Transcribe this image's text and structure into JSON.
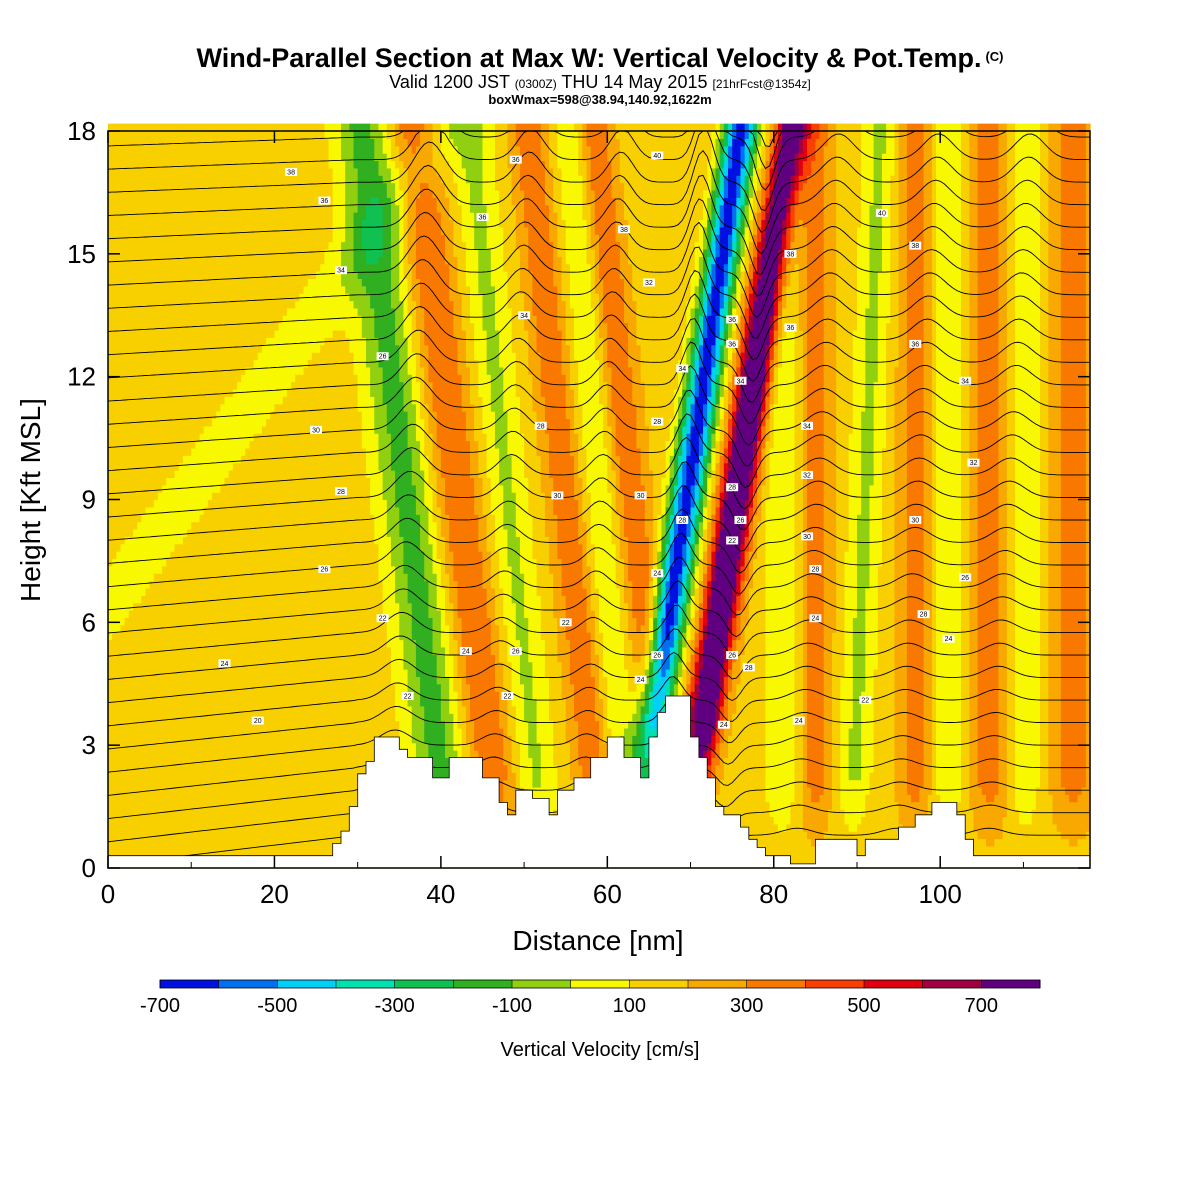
{
  "header": {
    "title": "Wind-Parallel Section at Max W: Vertical Velocity & Pot.Temp.",
    "title_mark": "(C)",
    "valid_prefix": "Valid 1200 JST",
    "valid_utc": "(0300Z)",
    "valid_date": "THU 14 May 2015",
    "forecast": "[21hrFcst@1354z]",
    "box_info": "boxWmax=598@38.94,140.92,1622m"
  },
  "chart_data": {
    "type": "heatmap",
    "xlabel": "Distance [nm]",
    "ylabel": "Height [Kft MSL]",
    "xlim": [
      0,
      118
    ],
    "ylim": [
      0,
      18
    ],
    "x_ticks": [
      0,
      20,
      40,
      60,
      80,
      100
    ],
    "y_ticks": [
      0,
      3,
      6,
      9,
      12,
      15,
      18
    ],
    "colorbar": {
      "title": "Vertical Velocity [cm/s]",
      "labels": [
        "-700",
        "-500",
        "-300",
        "-100",
        "100",
        "300",
        "500",
        "700"
      ],
      "colors": [
        "#0010e0",
        "#0070f0",
        "#00d0f8",
        "#00e0b0",
        "#10c050",
        "#30b020",
        "#90d010",
        "#f8f800",
        "#f8d000",
        "#f8a800",
        "#f87800",
        "#f84000",
        "#e00010",
        "#a00040",
        "#600080"
      ]
    },
    "terrain_kft": [
      [
        0,
        0.3
      ],
      [
        27,
        0.3
      ],
      [
        27,
        0.6
      ],
      [
        28,
        0.6
      ],
      [
        28,
        0.9
      ],
      [
        29,
        0.9
      ],
      [
        29,
        1.5
      ],
      [
        30,
        1.5
      ],
      [
        30,
        2.3
      ],
      [
        31,
        2.3
      ],
      [
        31,
        2.6
      ],
      [
        32,
        2.6
      ],
      [
        32,
        3.2
      ],
      [
        35,
        3.2
      ],
      [
        35,
        2.9
      ],
      [
        36,
        2.9
      ],
      [
        36,
        2.7
      ],
      [
        39,
        2.7
      ],
      [
        39,
        2.2
      ],
      [
        41,
        2.2
      ],
      [
        41,
        2.7
      ],
      [
        45,
        2.7
      ],
      [
        45,
        2.2
      ],
      [
        47,
        2.2
      ],
      [
        47,
        1.6
      ],
      [
        48,
        1.6
      ],
      [
        48,
        1.3
      ],
      [
        49,
        1.3
      ],
      [
        49,
        1.9
      ],
      [
        51,
        1.9
      ],
      [
        51,
        1.7
      ],
      [
        53,
        1.7
      ],
      [
        53,
        1.3
      ],
      [
        54,
        1.3
      ],
      [
        54,
        1.9
      ],
      [
        56,
        1.9
      ],
      [
        56,
        2.2
      ],
      [
        58,
        2.2
      ],
      [
        58,
        2.7
      ],
      [
        60,
        2.7
      ],
      [
        60,
        3.2
      ],
      [
        62,
        3.2
      ],
      [
        62,
        2.7
      ],
      [
        64,
        2.7
      ],
      [
        64,
        2.2
      ],
      [
        65,
        2.2
      ],
      [
        65,
        3.2
      ],
      [
        66,
        3.2
      ],
      [
        66,
        3.8
      ],
      [
        67,
        3.8
      ],
      [
        67,
        4.2
      ],
      [
        70,
        4.2
      ],
      [
        70,
        3.2
      ],
      [
        71,
        3.2
      ],
      [
        71,
        2.7
      ],
      [
        72,
        2.7
      ],
      [
        72,
        2.2
      ],
      [
        73,
        2.2
      ],
      [
        73,
        1.5
      ],
      [
        74,
        1.5
      ],
      [
        74,
        1.3
      ],
      [
        76,
        1.3
      ],
      [
        76,
        1.0
      ],
      [
        77,
        1.0
      ],
      [
        77,
        0.7
      ],
      [
        78,
        0.7
      ],
      [
        78,
        0.5
      ],
      [
        79,
        0.5
      ],
      [
        79,
        0.3
      ],
      [
        82,
        0.3
      ],
      [
        82,
        0.1
      ],
      [
        85,
        0.1
      ],
      [
        85,
        0.7
      ],
      [
        90,
        0.7
      ],
      [
        90,
        0.3
      ],
      [
        91,
        0.3
      ],
      [
        91,
        0.7
      ],
      [
        95,
        0.7
      ],
      [
        95,
        1.0
      ],
      [
        97,
        1.0
      ],
      [
        97,
        1.3
      ],
      [
        99,
        1.3
      ],
      [
        99,
        1.6
      ],
      [
        102,
        1.6
      ],
      [
        102,
        1.3
      ],
      [
        103,
        1.3
      ],
      [
        103,
        0.7
      ],
      [
        104,
        0.7
      ],
      [
        104,
        0.3
      ],
      [
        118,
        0.3
      ]
    ],
    "isentrope_labels": [
      {
        "x": 22,
        "y": 17.0,
        "text": "38"
      },
      {
        "x": 26,
        "y": 16.3,
        "text": "36"
      },
      {
        "x": 28,
        "y": 14.6,
        "text": "34"
      },
      {
        "x": 25,
        "y": 10.7,
        "text": "30"
      },
      {
        "x": 28,
        "y": 9.2,
        "text": "28"
      },
      {
        "x": 26,
        "y": 7.3,
        "text": "26"
      },
      {
        "x": 14,
        "y": 5.0,
        "text": "24"
      },
      {
        "x": 18,
        "y": 3.6,
        "text": "20"
      },
      {
        "x": 33,
        "y": 6.1,
        "text": "22"
      },
      {
        "x": 36,
        "y": 4.2,
        "text": "22"
      },
      {
        "x": 33,
        "y": 12.5,
        "text": "26"
      },
      {
        "x": 49,
        "y": 17.3,
        "text": "36"
      },
      {
        "x": 45,
        "y": 15.9,
        "text": "36"
      },
      {
        "x": 50,
        "y": 13.5,
        "text": "34"
      },
      {
        "x": 52,
        "y": 10.8,
        "text": "28"
      },
      {
        "x": 54,
        "y": 9.1,
        "text": "30"
      },
      {
        "x": 55,
        "y": 6.0,
        "text": "22"
      },
      {
        "x": 43,
        "y": 5.3,
        "text": "24"
      },
      {
        "x": 49,
        "y": 5.3,
        "text": "26"
      },
      {
        "x": 48,
        "y": 4.2,
        "text": "22"
      },
      {
        "x": 62,
        "y": 15.6,
        "text": "38"
      },
      {
        "x": 65,
        "y": 14.3,
        "text": "32"
      },
      {
        "x": 66,
        "y": 10.9,
        "text": "28"
      },
      {
        "x": 64,
        "y": 9.1,
        "text": "30"
      },
      {
        "x": 66,
        "y": 7.2,
        "text": "24"
      },
      {
        "x": 66,
        "y": 5.2,
        "text": "26"
      },
      {
        "x": 64,
        "y": 4.6,
        "text": "24"
      },
      {
        "x": 69,
        "y": 12.2,
        "text": "34"
      },
      {
        "x": 69,
        "y": 8.5,
        "text": "28"
      },
      {
        "x": 66,
        "y": 17.4,
        "text": "40"
      },
      {
        "x": 75,
        "y": 13.4,
        "text": "36"
      },
      {
        "x": 75,
        "y": 12.8,
        "text": "36"
      },
      {
        "x": 76,
        "y": 11.9,
        "text": "34"
      },
      {
        "x": 75,
        "y": 9.3,
        "text": "28"
      },
      {
        "x": 76,
        "y": 8.5,
        "text": "26"
      },
      {
        "x": 75,
        "y": 8.0,
        "text": "22"
      },
      {
        "x": 75,
        "y": 5.2,
        "text": "26"
      },
      {
        "x": 77,
        "y": 4.9,
        "text": "28"
      },
      {
        "x": 74,
        "y": 3.5,
        "text": "24"
      },
      {
        "x": 82,
        "y": 15.0,
        "text": "38"
      },
      {
        "x": 82,
        "y": 13.2,
        "text": "36"
      },
      {
        "x": 84,
        "y": 10.8,
        "text": "34"
      },
      {
        "x": 84,
        "y": 9.6,
        "text": "32"
      },
      {
        "x": 84,
        "y": 8.1,
        "text": "30"
      },
      {
        "x": 85,
        "y": 7.3,
        "text": "28"
      },
      {
        "x": 85,
        "y": 6.1,
        "text": "24"
      },
      {
        "x": 83,
        "y": 3.6,
        "text": "24"
      },
      {
        "x": 93,
        "y": 16.0,
        "text": "40"
      },
      {
        "x": 97,
        "y": 15.2,
        "text": "38"
      },
      {
        "x": 97,
        "y": 12.8,
        "text": "36"
      },
      {
        "x": 103,
        "y": 11.9,
        "text": "34"
      },
      {
        "x": 104,
        "y": 9.9,
        "text": "32"
      },
      {
        "x": 97,
        "y": 8.5,
        "text": "30"
      },
      {
        "x": 103,
        "y": 7.1,
        "text": "26"
      },
      {
        "x": 98,
        "y": 6.2,
        "text": "28"
      },
      {
        "x": 101,
        "y": 5.6,
        "text": "24"
      },
      {
        "x": 91,
        "y": 4.1,
        "text": "22"
      }
    ]
  }
}
